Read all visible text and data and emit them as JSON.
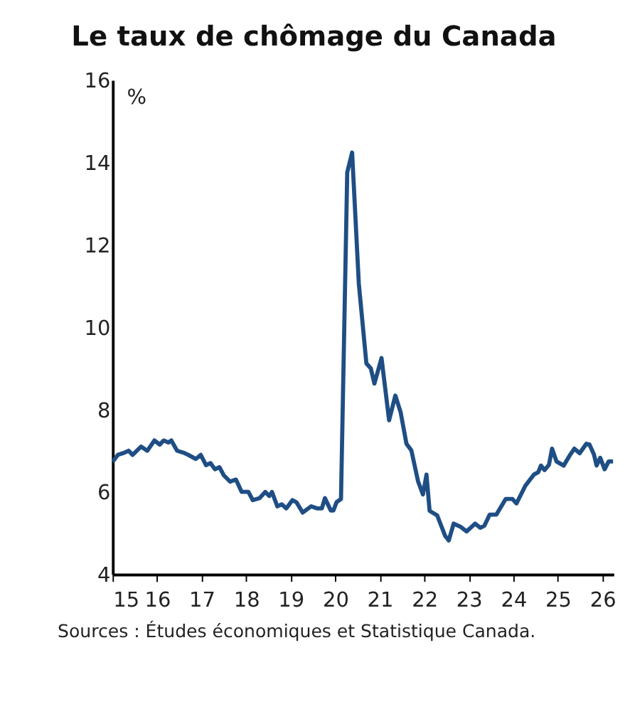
{
  "chart_data": {
    "type": "line",
    "title": "Le taux de chômage du Canada",
    "ylabel": "%",
    "annotations": [
      "Sources : Études économiques et Statistique Canada."
    ],
    "x": [
      15.0,
      15.12,
      15.26,
      15.36,
      15.45,
      15.64,
      15.78,
      15.94,
      16.06,
      16.15,
      16.25,
      16.32,
      16.45,
      16.6,
      16.7,
      16.87,
      16.98,
      17.1,
      17.2,
      17.3,
      17.4,
      17.5,
      17.64,
      17.77,
      17.9,
      18.05,
      18.15,
      18.3,
      18.43,
      18.52,
      18.58,
      18.7,
      18.8,
      18.9,
      19.04,
      19.13,
      19.27,
      19.46,
      19.6,
      19.7,
      19.77,
      19.9,
      19.96,
      20.03,
      20.13,
      20.27,
      20.38,
      20.53,
      20.7,
      20.8,
      20.88,
      21.04,
      21.21,
      21.35,
      21.47,
      21.6,
      21.71,
      21.86,
      21.97,
      22.05,
      22.12,
      22.29,
      22.47,
      22.55,
      22.66,
      22.82,
      22.95,
      23.14,
      23.26,
      23.35,
      23.47,
      23.62,
      23.83,
      23.98,
      24.07,
      24.27,
      24.46,
      24.56,
      24.62,
      24.7,
      24.8,
      24.87,
      24.97,
      25.13,
      25.28,
      25.37,
      25.49,
      25.64,
      25.71,
      25.81,
      25.87,
      25.95,
      26.05,
      26.14,
      26.24
    ],
    "series": [
      {
        "color": "#1f4e85",
        "values": [
          6.73,
          6.9,
          6.95,
          7.0,
          6.9,
          7.1,
          7.0,
          7.25,
          7.15,
          7.25,
          7.2,
          7.25,
          7.0,
          6.95,
          6.9,
          6.8,
          6.9,
          6.65,
          6.7,
          6.55,
          6.6,
          6.4,
          6.25,
          6.3,
          6.0,
          6.0,
          5.8,
          5.85,
          6.0,
          5.9,
          6.0,
          5.65,
          5.7,
          5.6,
          5.8,
          5.75,
          5.5,
          5.65,
          5.6,
          5.6,
          5.85,
          5.55,
          5.55,
          5.75,
          5.83,
          13.76,
          14.24,
          11.06,
          9.12,
          9.0,
          8.63,
          9.25,
          7.74,
          8.34,
          7.93,
          7.17,
          7.01,
          6.26,
          5.94,
          6.42,
          5.54,
          5.43,
          4.93,
          4.82,
          5.23,
          5.15,
          5.04,
          5.23,
          5.13,
          5.18,
          5.45,
          5.45,
          5.83,
          5.83,
          5.72,
          6.15,
          6.42,
          6.48,
          6.64,
          6.53,
          6.66,
          7.05,
          6.74,
          6.64,
          6.91,
          7.05,
          6.94,
          7.17,
          7.15,
          6.91,
          6.64,
          6.83,
          6.55,
          6.74,
          6.74
        ]
      }
    ],
    "xlim": [
      15,
      26.25
    ],
    "xticks": [
      15,
      16,
      17,
      18,
      19,
      20,
      21,
      22,
      23,
      24,
      25,
      26
    ],
    "ylim": [
      4,
      16
    ],
    "yticks": [
      4,
      6,
      8,
      10,
      12,
      14,
      16
    ],
    "grid": false,
    "line_style": "solid",
    "marker": "none"
  }
}
